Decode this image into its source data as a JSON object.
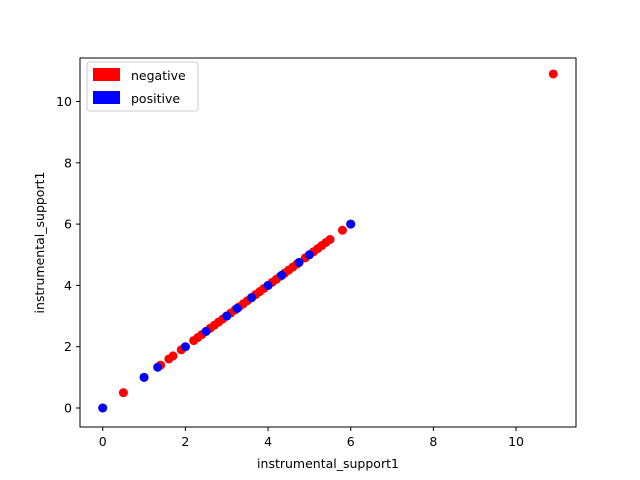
{
  "chart_data": {
    "type": "scatter",
    "xlabel": "instrumental_support1",
    "ylabel": "instrumental_support1",
    "xlim": [
      -0.55,
      11.45
    ],
    "ylim": [
      -0.62,
      11.42
    ],
    "xticks": [
      0,
      2,
      4,
      6,
      8,
      10
    ],
    "yticks": [
      0,
      2,
      4,
      6,
      8,
      10
    ],
    "grid": false,
    "legend_position": "top-left",
    "series": [
      {
        "name": "negative",
        "color": "#ff0000",
        "points": [
          [
            0,
            0
          ],
          [
            0.5,
            0.5
          ],
          [
            1.0,
            1.0
          ],
          [
            1.4,
            1.4
          ],
          [
            1.6,
            1.6
          ],
          [
            1.7,
            1.7
          ],
          [
            1.9,
            1.9
          ],
          [
            2.0,
            2.0
          ],
          [
            2.2,
            2.2
          ],
          [
            2.3,
            2.3
          ],
          [
            2.4,
            2.4
          ],
          [
            2.5,
            2.5
          ],
          [
            2.6,
            2.6
          ],
          [
            2.7,
            2.7
          ],
          [
            2.8,
            2.8
          ],
          [
            2.9,
            2.9
          ],
          [
            3.0,
            3.0
          ],
          [
            3.1,
            3.1
          ],
          [
            3.2,
            3.2
          ],
          [
            3.3,
            3.3
          ],
          [
            3.4,
            3.4
          ],
          [
            3.5,
            3.5
          ],
          [
            3.6,
            3.6
          ],
          [
            3.7,
            3.7
          ],
          [
            3.8,
            3.8
          ],
          [
            3.9,
            3.9
          ],
          [
            4.0,
            4.0
          ],
          [
            4.1,
            4.1
          ],
          [
            4.2,
            4.2
          ],
          [
            4.3,
            4.3
          ],
          [
            4.4,
            4.4
          ],
          [
            4.5,
            4.5
          ],
          [
            4.6,
            4.6
          ],
          [
            4.7,
            4.7
          ],
          [
            4.9,
            4.9
          ],
          [
            5.0,
            5.0
          ],
          [
            5.1,
            5.1
          ],
          [
            5.2,
            5.2
          ],
          [
            5.3,
            5.3
          ],
          [
            5.4,
            5.4
          ],
          [
            5.5,
            5.5
          ],
          [
            5.8,
            5.8
          ],
          [
            6.0,
            6.0
          ],
          [
            10.9,
            10.9
          ]
        ]
      },
      {
        "name": "positive",
        "color": "#0000ff",
        "points": [
          [
            0,
            0
          ],
          [
            1.0,
            1.0
          ],
          [
            1.33,
            1.33
          ],
          [
            2.0,
            2.0
          ],
          [
            2.5,
            2.5
          ],
          [
            3.0,
            3.0
          ],
          [
            3.25,
            3.25
          ],
          [
            3.6,
            3.6
          ],
          [
            4.0,
            4.0
          ],
          [
            4.33,
            4.33
          ],
          [
            4.75,
            4.75
          ],
          [
            5.0,
            5.0
          ],
          [
            6.0,
            6.0
          ]
        ]
      }
    ]
  }
}
